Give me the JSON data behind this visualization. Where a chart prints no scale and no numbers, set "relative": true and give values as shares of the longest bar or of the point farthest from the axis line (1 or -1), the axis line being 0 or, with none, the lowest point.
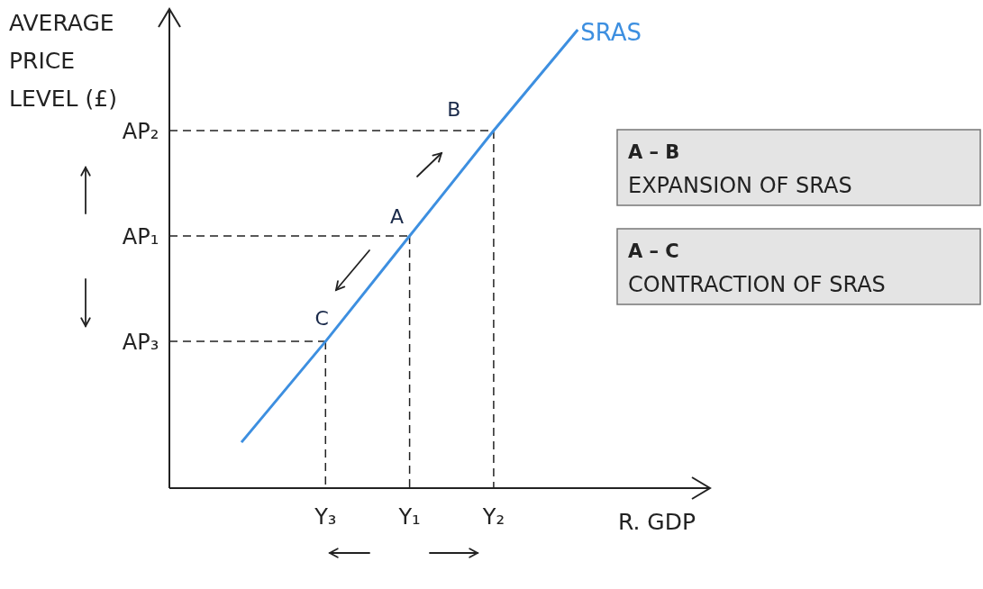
{
  "chart_data": {
    "type": "line",
    "ylabel": "AVERAGE PRICE LEVEL (£)",
    "xlabel": "R. GDP",
    "relative": true,
    "categories": [
      null,
      "Y₃",
      "Y₁",
      "Y₂",
      null
    ],
    "line_style": "solid",
    "series": [
      {
        "name": "SRAS",
        "color": "#3d8fe0",
        "values": [
          0.1,
          0.32,
          0.55,
          0.78,
          1
        ]
      }
    ],
    "ref_lines": [
      {
        "axis": "y",
        "value": 0.78,
        "label": "AP₂"
      },
      {
        "axis": "y",
        "value": 0.55,
        "label": "AP₁"
      },
      {
        "axis": "y",
        "value": 0.32,
        "label": "AP₃"
      }
    ],
    "annotations": [
      {
        "text": "A",
        "x": "Y₁",
        "y": 0.55
      },
      {
        "text": "B",
        "x": "Y₂",
        "y": 0.78
      },
      {
        "text": "C",
        "x": "Y₃",
        "y": 0.32
      },
      "A – B",
      "EXPANSION OF SRAS",
      "A – C",
      "CONTRACTION OF SRAS"
    ]
  }
}
